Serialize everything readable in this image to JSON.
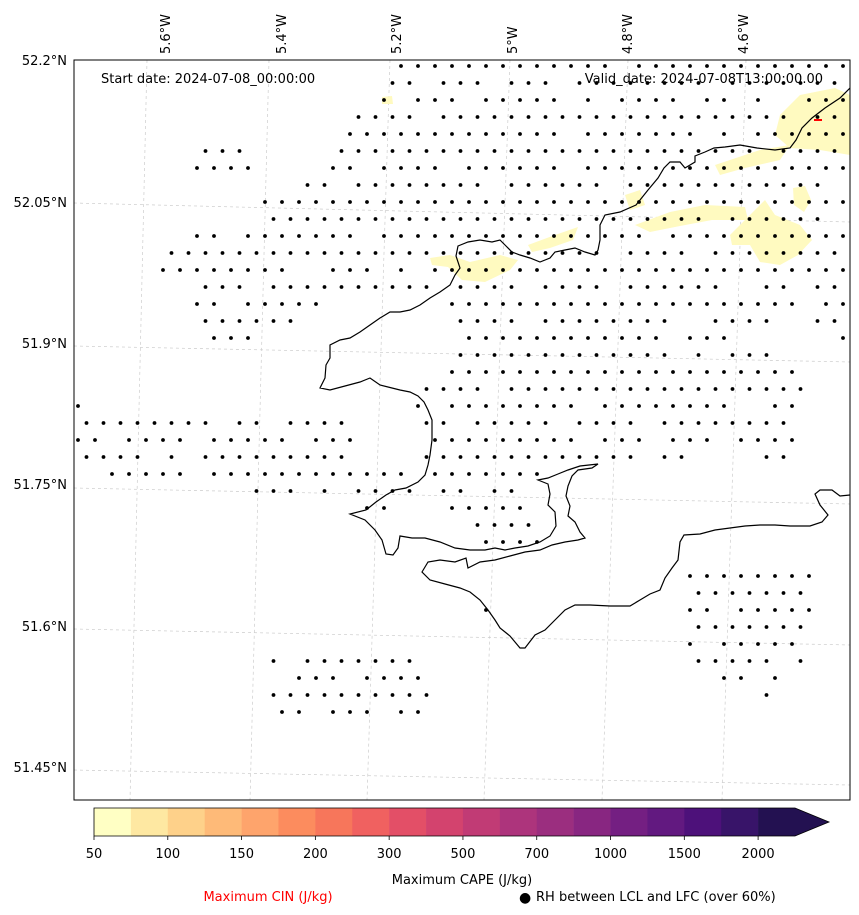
{
  "map": {
    "start_label": "Start date: 2024-07-08_00:00:00",
    "valid_label": "Valid_date: 2024-07-08T13:00:00.00",
    "lon_labels": [
      "5.6°W",
      "5.4°W",
      "5.2°W",
      "5°W",
      "4.8°W",
      "4.6°W"
    ],
    "lat_labels": [
      "52.2°N",
      "52.05°N",
      "51.9°N",
      "51.75°N",
      "51.6°N",
      "51.45°N"
    ],
    "colors": {
      "coastline": "#000000",
      "gridline": "#cccccc",
      "dot": "#000000",
      "cape_low": "#fffac0",
      "cin_contour": "#ff0000"
    }
  },
  "colorbar": {
    "ticks": [
      "50",
      "100",
      "150",
      "200",
      "300",
      "500",
      "700",
      "1000",
      "1500",
      "2000"
    ],
    "label": "Maximum CAPE (J/kg)",
    "colors": [
      "#ffffc4",
      "#fee8a2",
      "#fed18a",
      "#feba78",
      "#fea46c",
      "#fc8c5e",
      "#f7765b",
      "#f06160",
      "#e34f67",
      "#d3436e",
      "#c13b75",
      "#ad347c",
      "#9b2e7f",
      "#882681",
      "#741f82",
      "#621980",
      "#4d117a",
      "#381469",
      "#231151"
    ]
  },
  "legend": {
    "cin_label": "Maximum CIN (J/kg)",
    "cin_color": "#ff0000",
    "dot_symbol": "●",
    "rh_label": "RH between LCL and LFC (over 60%)"
  }
}
